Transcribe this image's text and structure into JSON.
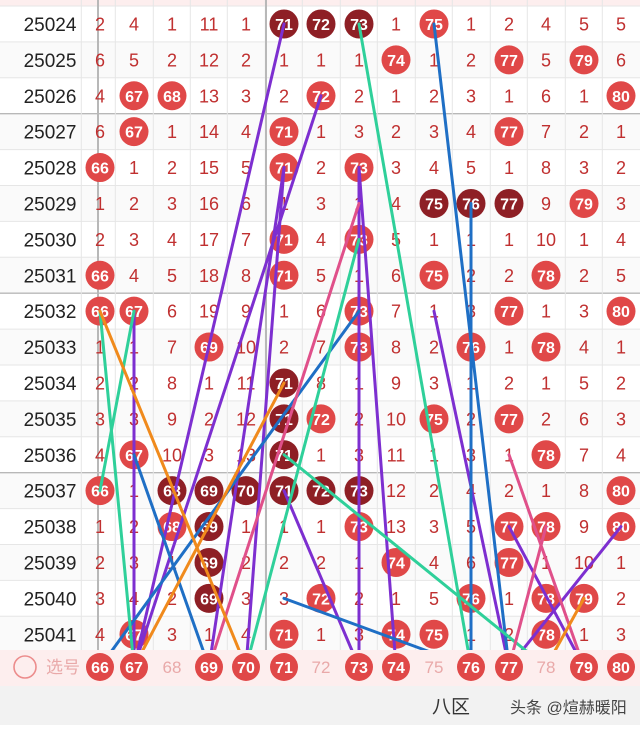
{
  "chart_data": {
    "type": "table",
    "columns": [
      "66",
      "67",
      "68",
      "69",
      "70",
      "71",
      "72",
      "73",
      "74",
      "75",
      "76",
      "77",
      "78",
      "79",
      "80"
    ],
    "rows": [
      {
        "issue": "25024",
        "cells": [
          "2",
          "4",
          "1",
          "11",
          "1",
          "71",
          "72",
          "73",
          "1",
          "75",
          "1",
          "2",
          "4",
          "5",
          "5"
        ]
      },
      {
        "issue": "25025",
        "cells": [
          "6",
          "5",
          "2",
          "12",
          "2",
          "1",
          "1",
          "1",
          "74",
          "1",
          "2",
          "77",
          "5",
          "79",
          "6"
        ]
      },
      {
        "issue": "25026",
        "cells": [
          "4",
          "67",
          "68",
          "13",
          "3",
          "2",
          "72",
          "2",
          "1",
          "2",
          "3",
          "1",
          "6",
          "1",
          "80"
        ]
      },
      {
        "issue": "25027",
        "cells": [
          "6",
          "67",
          "1",
          "14",
          "4",
          "71",
          "1",
          "3",
          "2",
          "3",
          "4",
          "77",
          "7",
          "2",
          "1"
        ]
      },
      {
        "issue": "25028",
        "cells": [
          "66",
          "1",
          "2",
          "15",
          "5",
          "71",
          "2",
          "73",
          "3",
          "4",
          "5",
          "1",
          "8",
          "3",
          "2"
        ]
      },
      {
        "issue": "25029",
        "cells": [
          "1",
          "2",
          "3",
          "16",
          "6",
          "1",
          "3",
          "1",
          "4",
          "75",
          "76",
          "77",
          "9",
          "79",
          "3"
        ]
      },
      {
        "issue": "25030",
        "cells": [
          "2",
          "3",
          "4",
          "17",
          "7",
          "71",
          "4",
          "73",
          "5",
          "1",
          "1",
          "1",
          "10",
          "1",
          "4"
        ]
      },
      {
        "issue": "25031",
        "cells": [
          "66",
          "4",
          "5",
          "18",
          "8",
          "71",
          "5",
          "1",
          "6",
          "75",
          "2",
          "2",
          "78",
          "2",
          "5"
        ]
      },
      {
        "issue": "25032",
        "cells": [
          "66",
          "67",
          "6",
          "19",
          "9",
          "1",
          "6",
          "73",
          "7",
          "1",
          "3",
          "77",
          "1",
          "3",
          "80"
        ]
      },
      {
        "issue": "25033",
        "cells": [
          "1",
          "1",
          "7",
          "69",
          "10",
          "2",
          "7",
          "73",
          "8",
          "2",
          "76",
          "1",
          "78",
          "4",
          "1"
        ]
      },
      {
        "issue": "25034",
        "cells": [
          "2",
          "2",
          "8",
          "1",
          "11",
          "71",
          "8",
          "1",
          "9",
          "3",
          "1",
          "2",
          "1",
          "5",
          "2"
        ]
      },
      {
        "issue": "25035",
        "cells": [
          "3",
          "3",
          "9",
          "2",
          "12",
          "71",
          "72",
          "2",
          "10",
          "75",
          "2",
          "77",
          "2",
          "6",
          "3"
        ]
      },
      {
        "issue": "25036",
        "cells": [
          "4",
          "67",
          "10",
          "3",
          "13",
          "71",
          "1",
          "3",
          "11",
          "1",
          "3",
          "1",
          "78",
          "7",
          "4"
        ]
      },
      {
        "issue": "25037",
        "cells": [
          "66",
          "1",
          "68",
          "69",
          "70",
          "71",
          "72",
          "73",
          "12",
          "2",
          "4",
          "2",
          "1",
          "8",
          "80"
        ]
      },
      {
        "issue": "25038",
        "cells": [
          "1",
          "2",
          "68",
          "69",
          "1",
          "1",
          "1",
          "73",
          "13",
          "3",
          "5",
          "77",
          "78",
          "9",
          "80"
        ]
      },
      {
        "issue": "25039",
        "cells": [
          "2",
          "3",
          "1",
          "69",
          "2",
          "2",
          "2",
          "1",
          "74",
          "4",
          "6",
          "77",
          "1",
          "10",
          "1"
        ]
      },
      {
        "issue": "25040",
        "cells": [
          "3",
          "4",
          "2",
          "69",
          "3",
          "3",
          "72",
          "2",
          "1",
          "5",
          "76",
          "1",
          "78",
          "79",
          "2"
        ]
      },
      {
        "issue": "25041",
        "cells": [
          "4",
          "67",
          "3",
          "1",
          "4",
          "71",
          "1",
          "3",
          "74",
          "75",
          "1",
          "2",
          "78",
          "1",
          "3"
        ]
      }
    ],
    "dark_cells": [
      [
        0,
        5
      ],
      [
        0,
        6
      ],
      [
        0,
        7
      ],
      [
        5,
        9
      ],
      [
        5,
        10
      ],
      [
        5,
        11
      ],
      [
        10,
        5
      ],
      [
        11,
        5
      ],
      [
        12,
        5
      ],
      [
        13,
        2
      ],
      [
        13,
        3
      ],
      [
        13,
        4
      ],
      [
        13,
        5
      ],
      [
        13,
        6
      ],
      [
        13,
        7
      ],
      [
        14,
        3
      ],
      [
        15,
        3
      ],
      [
        16,
        3
      ]
    ],
    "footer": {
      "circle_label": "选号",
      "numbers": [
        "66",
        "67",
        "68",
        "69",
        "70",
        "71",
        "72",
        "73",
        "74",
        "75",
        "76",
        "77",
        "78",
        "79",
        "80"
      ],
      "selected": [
        "66",
        "67",
        "69",
        "70",
        "71",
        "73",
        "74",
        "76",
        "77",
        "79",
        "80"
      ]
    },
    "bottom_bar": {
      "zone_label": "八区",
      "watermark": "头条 @煊赫暖阳"
    },
    "colors": {
      "ball_red": "#e04848",
      "ball_dark": "#8e1f25",
      "cell_text": "#c03030",
      "footer_unselected_text": "#e9a9a9",
      "footer_bg": "#fdeeee",
      "bottom_bar_bg": "#f2f2f2",
      "grid_line": "#e6e6e6",
      "separator": "#b8b8b8",
      "line_colors": [
        "#7d2fd0",
        "#1f6fc5",
        "#2fd09a",
        "#e0508a",
        "#f08a1c"
      ]
    },
    "lines": [
      {
        "color_index": 0,
        "from": [
          17,
          1
        ],
        "to": [
          0,
          5
        ]
      },
      {
        "color_index": 0,
        "from": [
          17,
          1
        ],
        "to": [
          2,
          6
        ]
      },
      {
        "color_index": 0,
        "from": [
          17,
          4
        ],
        "to": [
          4,
          5
        ]
      },
      {
        "color_index": 0,
        "from": [
          17,
          7
        ],
        "to": [
          4,
          7
        ]
      },
      {
        "color_index": 0,
        "from": [
          17,
          7
        ],
        "to": [
          13,
          5
        ]
      },
      {
        "color_index": 0,
        "from": [
          17,
          8
        ],
        "to": [
          4,
          7
        ]
      },
      {
        "color_index": 0,
        "from": [
          17,
          11
        ],
        "to": [
          8,
          9
        ]
      },
      {
        "color_index": 0,
        "from": [
          17,
          11
        ],
        "to": [
          14,
          14
        ]
      },
      {
        "color_index": 0,
        "from": [
          17,
          13
        ],
        "to": [
          14,
          11
        ]
      },
      {
        "color_index": 0,
        "from": [
          17,
          1
        ],
        "to": [
          8,
          1
        ]
      },
      {
        "color_index": 0,
        "from": [
          17,
          3
        ],
        "to": [
          4,
          5
        ]
      },
      {
        "color_index": 1,
        "from": [
          17,
          11
        ],
        "to": [
          0,
          9
        ]
      },
      {
        "color_index": 1,
        "from": [
          17,
          10
        ],
        "to": [
          5,
          10
        ]
      },
      {
        "color_index": 1,
        "from": [
          17,
          0
        ],
        "to": [
          8,
          7
        ]
      },
      {
        "color_index": 1,
        "from": [
          17,
          3
        ],
        "to": [
          12,
          1
        ]
      },
      {
        "color_index": 1,
        "from": [
          16,
          5
        ],
        "to": [
          17,
          10
        ]
      },
      {
        "color_index": 2,
        "from": [
          17,
          10
        ],
        "to": [
          0,
          7
        ]
      },
      {
        "color_index": 2,
        "from": [
          17,
          1
        ],
        "to": [
          8,
          0
        ]
      },
      {
        "color_index": 2,
        "from": [
          17,
          4
        ],
        "to": [
          6,
          7
        ]
      },
      {
        "color_index": 2,
        "from": [
          17,
          12
        ],
        "to": [
          12,
          5
        ]
      },
      {
        "color_index": 2,
        "from": [
          13,
          0
        ],
        "to": [
          8,
          1
        ]
      },
      {
        "color_index": 3,
        "from": [
          17,
          3
        ],
        "to": [
          5,
          7
        ]
      },
      {
        "color_index": 3,
        "from": [
          17,
          11
        ],
        "to": [
          14,
          12
        ]
      },
      {
        "color_index": 3,
        "from": [
          17,
          13
        ],
        "to": [
          12,
          11
        ]
      },
      {
        "color_index": 4,
        "from": [
          17,
          4
        ],
        "to": [
          8,
          0
        ]
      },
      {
        "color_index": 4,
        "from": [
          17,
          1
        ],
        "to": [
          10,
          5
        ]
      },
      {
        "color_index": 4,
        "from": [
          17,
          12
        ],
        "to": [
          16,
          13
        ]
      }
    ]
  }
}
